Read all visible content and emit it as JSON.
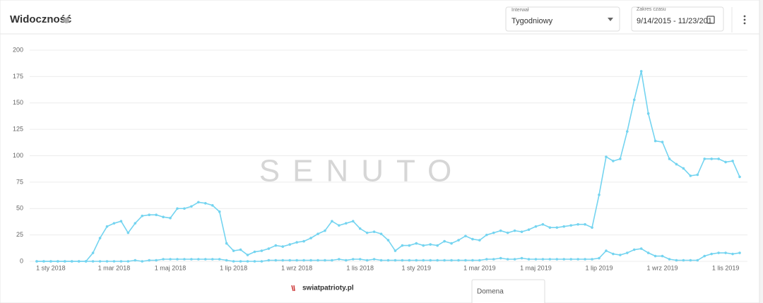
{
  "header": {
    "title": "Widoczność",
    "interval_label": "Interwał",
    "interval_value": "Tygodniowy",
    "range_label": "Zakres czasu",
    "range_value": "9/14/2015 - 11/23/201"
  },
  "watermark": "SENUTO",
  "domain_box": "Domena",
  "chart_data": {
    "type": "line",
    "categories": [
      null,
      null,
      "1 sty 2018",
      null,
      null,
      null,
      null,
      null,
      null,
      null,
      null,
      "1 mar 2018",
      null,
      null,
      null,
      null,
      null,
      null,
      null,
      "1 maj 2018",
      null,
      null,
      null,
      null,
      null,
      null,
      null,
      null,
      "1 lip 2018",
      null,
      null,
      null,
      null,
      null,
      null,
      null,
      null,
      "1 wrz 2018",
      null,
      null,
      null,
      null,
      null,
      null,
      null,
      null,
      "1 lis 2018",
      null,
      null,
      null,
      null,
      null,
      null,
      null,
      "1 sty 2019",
      null,
      null,
      null,
      null,
      null,
      null,
      null,
      null,
      "1 mar 2019",
      null,
      null,
      null,
      null,
      null,
      null,
      null,
      "1 maj 2019",
      null,
      null,
      null,
      null,
      null,
      null,
      null,
      null,
      "1 lip 2019",
      null,
      null,
      null,
      null,
      null,
      null,
      null,
      null,
      "1 wrz 2019",
      null,
      null,
      null,
      null,
      null,
      null,
      null,
      null,
      "1 lis 2019",
      null,
      null
    ],
    "series": [
      {
        "name": "swiatpatrioty.pl",
        "color": "#74d4f0",
        "values": [
          0,
          0,
          0,
          0,
          0,
          0,
          0,
          0,
          8,
          22,
          33,
          36,
          38,
          27,
          36,
          43,
          44,
          44,
          42,
          41,
          50,
          50,
          52,
          56,
          55,
          53,
          47,
          17,
          10,
          11,
          6,
          9,
          10,
          12,
          15,
          14,
          16,
          18,
          19,
          22,
          26,
          29,
          38,
          34,
          36,
          38,
          31,
          27,
          28,
          26,
          20,
          10,
          15,
          15,
          17,
          15,
          16,
          15,
          19,
          17,
          20,
          24,
          21,
          20,
          25,
          27,
          29,
          27,
          29,
          28,
          30,
          33,
          35,
          32,
          32,
          33,
          34,
          35,
          35,
          32,
          63,
          99,
          95,
          97,
          123,
          153,
          180,
          140,
          114,
          113,
          97,
          92,
          88,
          81,
          82,
          97,
          97,
          97,
          94,
          95,
          80
        ]
      },
      {
        "color": "#74d4f0",
        "values": [
          0,
          0,
          0,
          0,
          0,
          0,
          0,
          0,
          0,
          0,
          0,
          0,
          0,
          0,
          1,
          0,
          1,
          1,
          2,
          2,
          2,
          2,
          2,
          2,
          2,
          2,
          2,
          1,
          0,
          0,
          0,
          0,
          0,
          1,
          1,
          1,
          1,
          1,
          1,
          1,
          1,
          1,
          1,
          2,
          1,
          2,
          2,
          1,
          2,
          1,
          1,
          1,
          1,
          1,
          1,
          1,
          1,
          1,
          1,
          1,
          1,
          1,
          1,
          1,
          2,
          2,
          3,
          2,
          2,
          3,
          2,
          2,
          2,
          2,
          2,
          2,
          2,
          2,
          2,
          2,
          3,
          10,
          7,
          6,
          8,
          11,
          12,
          8,
          5,
          5,
          2,
          1,
          1,
          1,
          1,
          5,
          7,
          8,
          8,
          7,
          8
        ]
      }
    ],
    "ylim": [
      0,
      200
    ],
    "yticks": [
      0,
      25,
      50,
      75,
      100,
      125,
      150,
      175,
      200
    ],
    "grid": true,
    "legend": "bottom"
  }
}
